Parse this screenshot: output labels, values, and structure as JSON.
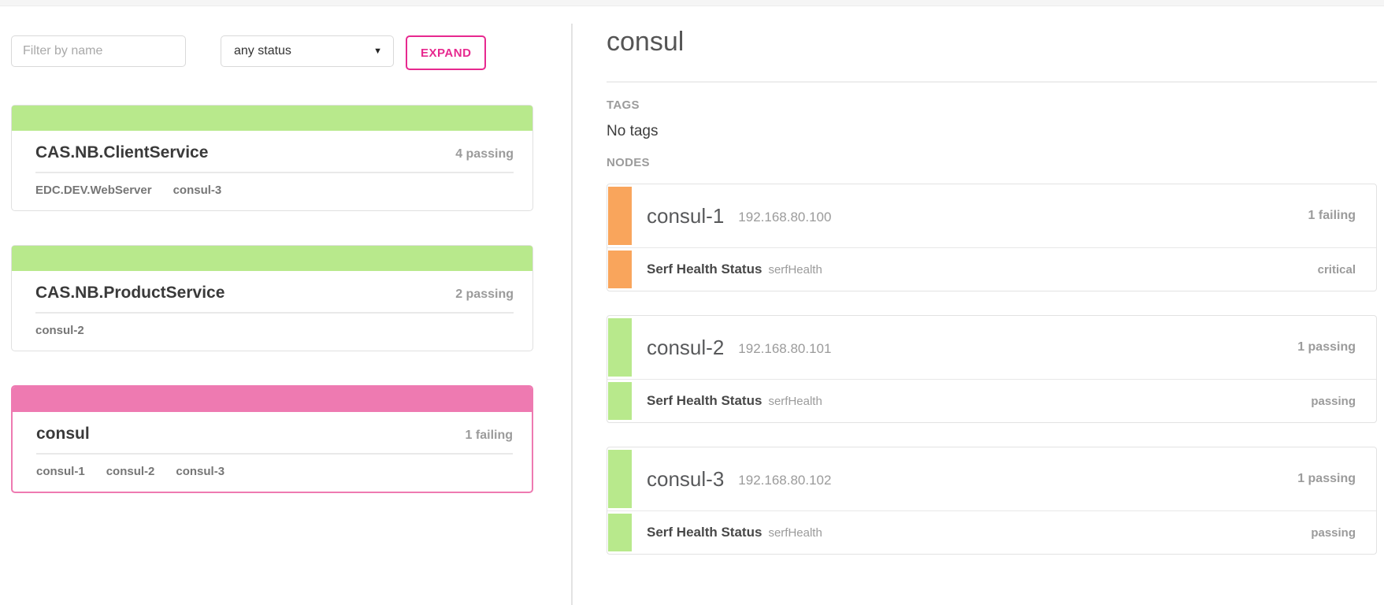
{
  "toolbar": {
    "filter_placeholder": "Filter by name",
    "status_select_value": "any status",
    "expand_label": "EXPAND"
  },
  "services": [
    {
      "name": "CAS.NB.ClientService",
      "status": "4 passing",
      "state": "passing",
      "selected": false,
      "tags": [
        "EDC.DEV.WebServer",
        "consul-3"
      ]
    },
    {
      "name": "CAS.NB.ProductService",
      "status": "2 passing",
      "state": "passing",
      "selected": false,
      "tags": [
        "consul-2"
      ]
    },
    {
      "name": "consul",
      "status": "1 failing",
      "state": "failing",
      "selected": true,
      "tags": [
        "consul-1",
        "consul-2",
        "consul-3"
      ]
    }
  ],
  "detail": {
    "title": "consul",
    "tags_heading": "TAGS",
    "tags_value": "No tags",
    "nodes_heading": "NODES",
    "nodes": [
      {
        "name": "consul-1",
        "ip": "192.168.80.100",
        "status": "1 failing",
        "state": "failing",
        "checks": [
          {
            "name": "Serf Health Status",
            "id": "serfHealth",
            "status": "critical",
            "state": "failing"
          }
        ]
      },
      {
        "name": "consul-2",
        "ip": "192.168.80.101",
        "status": "1 passing",
        "state": "passing",
        "checks": [
          {
            "name": "Serf Health Status",
            "id": "serfHealth",
            "status": "passing",
            "state": "passing"
          }
        ]
      },
      {
        "name": "consul-3",
        "ip": "192.168.80.102",
        "status": "1 passing",
        "state": "passing",
        "checks": [
          {
            "name": "Serf Health Status",
            "id": "serfHealth",
            "status": "passing",
            "state": "passing"
          }
        ]
      }
    ]
  },
  "colors": {
    "passing_green": "#b8e98c",
    "service_failing_pink": "#ee7ab1",
    "node_failing_orange": "#f9a55c",
    "accent_pink": "#e7298f"
  }
}
